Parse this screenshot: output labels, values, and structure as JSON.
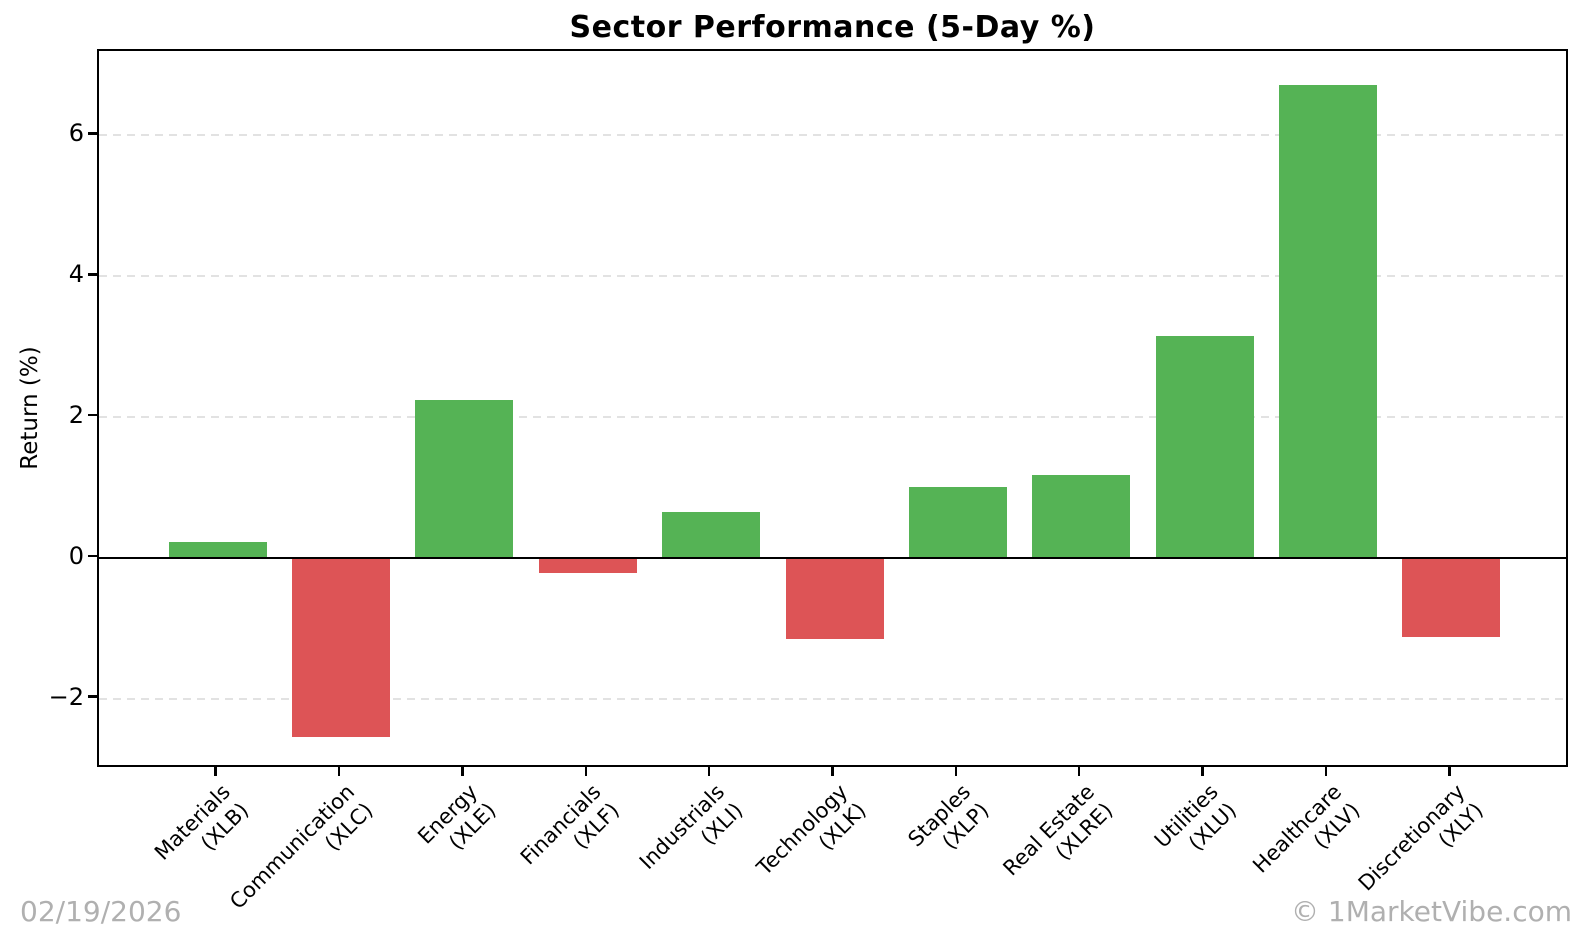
{
  "chart_data": {
    "type": "bar",
    "title": "Sector Performance (5-Day %)",
    "ylabel": "Return (%)",
    "xlabel": "",
    "categories": [
      {
        "name": "Materials",
        "ticker": "(XLB)"
      },
      {
        "name": "Communication",
        "ticker": "(XLC)"
      },
      {
        "name": "Energy",
        "ticker": "(XLE)"
      },
      {
        "name": "Financials",
        "ticker": "(XLF)"
      },
      {
        "name": "Industrials",
        "ticker": "(XLI)"
      },
      {
        "name": "Technology",
        "ticker": "(XLK)"
      },
      {
        "name": "Staples",
        "ticker": "(XLP)"
      },
      {
        "name": "Real Estate",
        "ticker": "(XLRE)"
      },
      {
        "name": "Utilities",
        "ticker": "(XLU)"
      },
      {
        "name": "Healthcare",
        "ticker": "(XLV)"
      },
      {
        "name": "Discretionary",
        "ticker": "(XLY)"
      }
    ],
    "values": [
      0.22,
      -2.55,
      2.24,
      -0.21,
      0.65,
      -1.15,
      1.01,
      1.18,
      3.15,
      6.72,
      -1.13
    ],
    "yticks": [
      {
        "value": 6,
        "label": "6"
      },
      {
        "value": 4,
        "label": "4"
      },
      {
        "value": 2,
        "label": "2"
      },
      {
        "value": 0,
        "label": "0"
      },
      {
        "value": -2,
        "label": "−2"
      }
    ],
    "ylim": [
      -3.0,
      7.2
    ],
    "grid": {
      "axis": "y",
      "style": "dashed"
    },
    "legend": null,
    "colors": {
      "positive": "#55b355",
      "negative": "#dd5456",
      "gridline": "#e2e2e2",
      "axis": "#000000",
      "footer_text": "#b0b0b0"
    }
  },
  "footer": {
    "date": "02/19/2026",
    "watermark": "© 1MarketVibe.com"
  }
}
